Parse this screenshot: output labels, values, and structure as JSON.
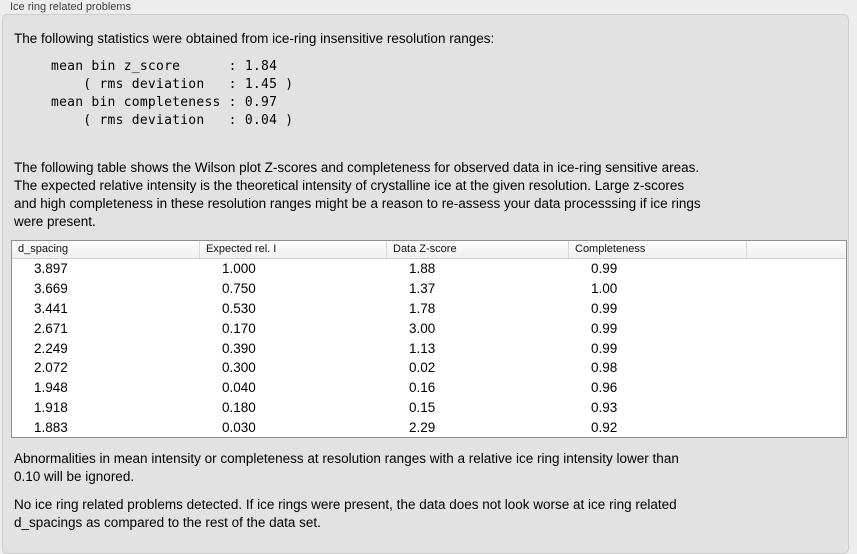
{
  "panel_title": "Ice ring related problems",
  "stats_section": {
    "intro": "The following statistics were obtained from ice-ring insensitive resolution ranges:",
    "mono_lines": [
      "mean bin z_score      : 1.84",
      "    ( rms deviation   : 1.45 )",
      "mean bin completeness : 0.97",
      "    ( rms deviation   : 0.04 )"
    ]
  },
  "table_description_lines": [
    "The following table shows the Wilson plot Z-scores and completeness for observed data in ice-ring sensitive areas.",
    "The expected relative intensity is the theoretical intensity of crystalline ice at the given resolution. Large z-scores",
    "and high completeness in these resolution ranges might be a reason to re-assess your data processsing if ice rings",
    "were present."
  ],
  "table": {
    "columns": [
      "d_spacing",
      "Expected rel. I",
      "Data Z-score",
      "Completeness"
    ],
    "rows": [
      [
        "3.897",
        "1.000",
        "1.88",
        "0.99"
      ],
      [
        "3.669",
        "0.750",
        "1.37",
        "1.00"
      ],
      [
        "3.441",
        "0.530",
        "1.78",
        "0.99"
      ],
      [
        "2.671",
        "0.170",
        "3.00",
        "0.99"
      ],
      [
        "2.249",
        "0.390",
        "1.13",
        "0.99"
      ],
      [
        "2.072",
        "0.300",
        "0.02",
        "0.98"
      ],
      [
        "1.948",
        "0.040",
        "0.16",
        "0.96"
      ],
      [
        "1.918",
        "0.180",
        "0.15",
        "0.93"
      ],
      [
        "1.883",
        "0.030",
        "2.29",
        "0.92"
      ]
    ]
  },
  "ignore_note_lines": [
    "Abnormalities in mean intensity or completeness at resolution ranges with a relative ice ring intensity lower than",
    "0.10 will be ignored."
  ],
  "conclusion_lines": [
    "No ice ring related problems detected. If ice rings were present, the data does not look worse at ice ring related",
    "d_spacings as compared to the rest of the data set."
  ],
  "colors": {
    "page_bg": "#ededed",
    "panel_bg": "#e2e2e2",
    "panel_border": "#cdcdcd",
    "table_border": "#8f8f8f",
    "header_separator": "#d8d8d8",
    "title_text": "#3d3d3d",
    "body_text": "#000000"
  }
}
